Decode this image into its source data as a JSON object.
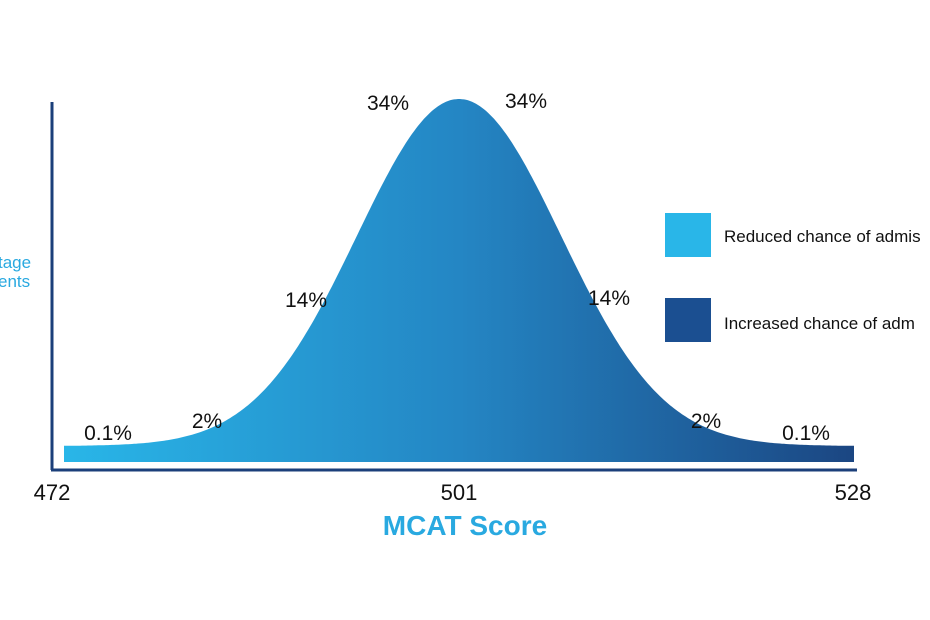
{
  "chart_data": {
    "type": "area",
    "title": "",
    "xlabel": "MCAT Score",
    "ylabel_lines": [
      "tage",
      "ents"
    ],
    "x_ticks": [
      472,
      501,
      528
    ],
    "xlim": [
      472,
      528
    ],
    "mean": 501,
    "segment_percentages": [
      {
        "label": "0.1%",
        "side": "left"
      },
      {
        "label": "2%",
        "side": "left"
      },
      {
        "label": "14%",
        "side": "left"
      },
      {
        "label": "34%",
        "side": "left"
      },
      {
        "label": "34%",
        "side": "right"
      },
      {
        "label": "14%",
        "side": "right"
      },
      {
        "label": "2%",
        "side": "right"
      },
      {
        "label": "0.1%",
        "side": "right"
      }
    ],
    "legend": [
      {
        "label": "Reduced chance of admis",
        "color": "#29b6e8"
      },
      {
        "label": "Increased chance of adm",
        "color": "#1b4f91"
      }
    ],
    "legend_position": "right",
    "grid": false,
    "colors": {
      "gradient_start": "#29b6e8",
      "gradient_end": "#1b4682",
      "axis": "#1b3f7a",
      "xlabel": "#29a9e0",
      "ylabel": "#29a9e0"
    }
  }
}
